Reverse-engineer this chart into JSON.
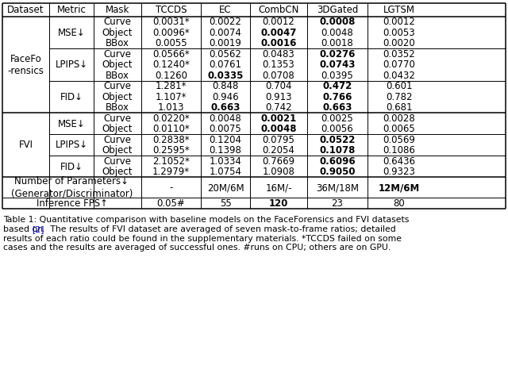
{
  "headers": [
    "Dataset",
    "Metric",
    "Mask",
    "TCCDS",
    "EC",
    "CombCN",
    "3DGated",
    "LGTSM"
  ],
  "rows": [
    {
      "mask": "Curve",
      "tccds": "0.0031*",
      "ec": "0.0022",
      "combcn": "0.0012",
      "3dgated": "0.0008",
      "lgtsm": "0.0012",
      "bold": [
        "3dgated"
      ]
    },
    {
      "mask": "Object",
      "tccds": "0.0096*",
      "ec": "0.0074",
      "combcn": "0.0047",
      "3dgated": "0.0048",
      "lgtsm": "0.0053",
      "bold": [
        "combcn"
      ]
    },
    {
      "mask": "BBox",
      "tccds": "0.0055",
      "ec": "0.0019",
      "combcn": "0.0016",
      "3dgated": "0.0018",
      "lgtsm": "0.0020",
      "bold": [
        "combcn"
      ]
    },
    {
      "mask": "Curve",
      "tccds": "0.0566*",
      "ec": "0.0562",
      "combcn": "0.0483",
      "3dgated": "0.0276",
      "lgtsm": "0.0352",
      "bold": [
        "3dgated"
      ]
    },
    {
      "mask": "Object",
      "tccds": "0.1240*",
      "ec": "0.0761",
      "combcn": "0.1353",
      "3dgated": "0.0743",
      "lgtsm": "0.0770",
      "bold": [
        "3dgated"
      ]
    },
    {
      "mask": "BBox",
      "tccds": "0.1260",
      "ec": "0.0335",
      "combcn": "0.0708",
      "3dgated": "0.0395",
      "lgtsm": "0.0432",
      "bold": [
        "ec"
      ]
    },
    {
      "mask": "Curve",
      "tccds": "1.281*",
      "ec": "0.848",
      "combcn": "0.704",
      "3dgated": "0.472",
      "lgtsm": "0.601",
      "bold": [
        "3dgated"
      ]
    },
    {
      "mask": "Object",
      "tccds": "1.107*",
      "ec": "0.946",
      "combcn": "0.913",
      "3dgated": "0.766",
      "lgtsm": "0.782",
      "bold": [
        "3dgated"
      ]
    },
    {
      "mask": "BBox",
      "tccds": "1.013",
      "ec": "0.663",
      "combcn": "0.742",
      "3dgated": "0.663",
      "lgtsm": "0.681",
      "bold": [
        "ec",
        "3dgated"
      ]
    },
    {
      "mask": "Curve",
      "tccds": "0.0220*",
      "ec": "0.0048",
      "combcn": "0.0021",
      "3dgated": "0.0025",
      "lgtsm": "0.0028",
      "bold": [
        "combcn"
      ]
    },
    {
      "mask": "Object",
      "tccds": "0.0110*",
      "ec": "0.0075",
      "combcn": "0.0048",
      "3dgated": "0.0056",
      "lgtsm": "0.0065",
      "bold": [
        "combcn"
      ]
    },
    {
      "mask": "Curve",
      "tccds": "0.2838*",
      "ec": "0.1204",
      "combcn": "0.0795",
      "3dgated": "0.0522",
      "lgtsm": "0.0569",
      "bold": [
        "3dgated"
      ]
    },
    {
      "mask": "Object",
      "tccds": "0.2595*",
      "ec": "0.1398",
      "combcn": "0.2054",
      "3dgated": "0.1078",
      "lgtsm": "0.1086",
      "bold": [
        "3dgated"
      ]
    },
    {
      "mask": "Curve",
      "tccds": "2.1052*",
      "ec": "1.0334",
      "combcn": "0.7669",
      "3dgated": "0.6096",
      "lgtsm": "0.6436",
      "bold": [
        "3dgated"
      ]
    },
    {
      "mask": "Object",
      "tccds": "1.2979*",
      "ec": "1.0754",
      "combcn": "1.0908",
      "3dgated": "0.9050",
      "lgtsm": "0.9323",
      "bold": [
        "3dgated"
      ]
    }
  ],
  "metrics_ff": [
    {
      "label": "MSE↓",
      "rows": [
        0,
        1,
        2
      ]
    },
    {
      "label": "LPIPS↓",
      "rows": [
        3,
        4,
        5
      ]
    },
    {
      "label": "FID↓",
      "rows": [
        6,
        7,
        8
      ]
    }
  ],
  "metrics_fvi": [
    {
      "label": "MSE↓",
      "rows": [
        9,
        10
      ]
    },
    {
      "label": "LPIPS↓",
      "rows": [
        11,
        12
      ]
    },
    {
      "label": "FID↓",
      "rows": [
        13,
        14
      ]
    }
  ],
  "param_row": {
    "label1": "Number of Parameters↓",
    "label2": "(Generator/Discriminator)",
    "tccds": "-",
    "ec": "20M/6M",
    "combcn": "16M/-",
    "3dgated": "36M/18M",
    "lgtsm": "12M/6M",
    "bold": [
      "lgtsm"
    ]
  },
  "fps_row": {
    "label": "Inference FPS↑",
    "tccds": "0.05#",
    "ec": "55",
    "combcn": "120",
    "3dgated": "23",
    "lgtsm": "80",
    "bold": [
      "combcn"
    ]
  },
  "caption_lines": [
    "Table 1: Quantitative comparison with baseline models on the FaceForensics and FVI datasets",
    "based on [2].  The results of FVI dataset are averaged of seven mask-to-frame ratios; detailed",
    "results of each ratio could be found in the supplementary materials. *TCCDS failed on some",
    "cases and the results are averaged of successful ones. #runs on CPU; others are on GPU."
  ],
  "bg_color": "#ffffff",
  "font_size": 8.5,
  "caption_font_size": 7.8
}
